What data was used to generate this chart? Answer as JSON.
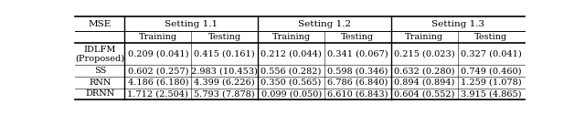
{
  "title": "MSE",
  "col_groups": [
    "Setting 1.1",
    "Setting 1.2",
    "Setting 1.3"
  ],
  "sub_cols": [
    "Training",
    "Testing"
  ],
  "row_labels": [
    "IDLFM\n(Proposed)",
    "SS",
    "RNN",
    "DRNN"
  ],
  "data": [
    [
      "0.209 (0.041)",
      "0.415 (0.161)",
      "0.212 (0.044)",
      "0.341 (0.067)",
      "0.215 (0.023)",
      "0.327 (0.041)"
    ],
    [
      "0.602 (0.257)",
      "2.983 (10.453)",
      "0.556 (0.282)",
      "0.598 (0.346)",
      "0.632 (0.280)",
      "0.749 (0.460)"
    ],
    [
      "4.186 (6.180)",
      "4.399 (6.226)",
      "0.350 (0.565)",
      "6.786 (6.840)",
      "0.894 (0.894)",
      "1.259 (1.078)"
    ],
    [
      "1.712 (2.504)",
      "5.793 (7.878)",
      "0.099 (0.050)",
      "6.610 (6.843)",
      "0.604 (0.552)",
      "3.915 (4.865)"
    ]
  ],
  "bg_color": "#ffffff",
  "text_color": "#000000",
  "font_size": 7.0,
  "header_font_size": 7.5,
  "font_family": "serif"
}
